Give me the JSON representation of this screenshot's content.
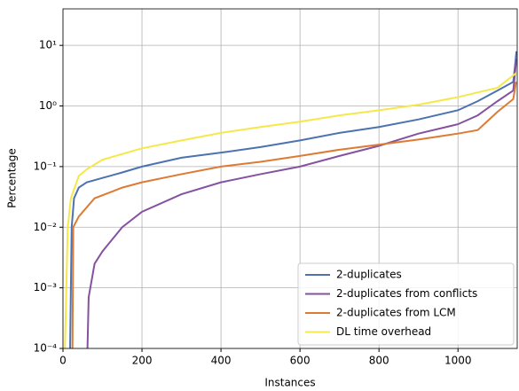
{
  "chart_data": {
    "type": "line",
    "xlabel": "Instances",
    "ylabel": "Percentage",
    "xlim": [
      0,
      1150
    ],
    "ylim": [
      0.0001,
      40
    ],
    "yscale": "log",
    "grid": true,
    "legend_loc": "lower right",
    "xticks": [
      0,
      200,
      400,
      600,
      800,
      1000
    ],
    "yticks": [
      {
        "value": 0.0001,
        "label": "10⁻⁴"
      },
      {
        "value": 0.001,
        "label": "10⁻³"
      },
      {
        "value": 0.01,
        "label": "10⁻²"
      },
      {
        "value": 0.1,
        "label": "10⁻¹"
      },
      {
        "value": 1,
        "label": "10⁰"
      },
      {
        "value": 10,
        "label": "10¹"
      }
    ],
    "series": [
      {
        "name": "2-duplicates",
        "color": "#4c72b0",
        "x": [
          18,
          22,
          28,
          40,
          60,
          100,
          150,
          200,
          300,
          400,
          500,
          600,
          700,
          800,
          900,
          1000,
          1050,
          1100,
          1140,
          1145,
          1148
        ],
        "values": [
          0.0001,
          0.01,
          0.03,
          0.045,
          0.055,
          0.065,
          0.08,
          0.1,
          0.14,
          0.17,
          0.21,
          0.27,
          0.36,
          0.45,
          0.6,
          0.85,
          1.2,
          1.8,
          2.5,
          5,
          8
        ]
      },
      {
        "name": "2-duplicates from conflicts",
        "color": "#8452a0",
        "x": [
          62,
          65,
          80,
          100,
          150,
          200,
          300,
          400,
          500,
          600,
          700,
          800,
          900,
          1000,
          1050,
          1100,
          1140,
          1148
        ],
        "values": [
          0.0001,
          0.0007,
          0.0025,
          0.004,
          0.01,
          0.018,
          0.035,
          0.055,
          0.075,
          0.1,
          0.15,
          0.22,
          0.35,
          0.5,
          0.7,
          1.2,
          1.8,
          6
        ]
      },
      {
        "name": "2-duplicates from LCM",
        "color": "#dd7a34",
        "x": [
          24,
          26,
          40,
          80,
          150,
          200,
          300,
          400,
          500,
          600,
          700,
          800,
          900,
          1000,
          1050,
          1100,
          1140,
          1147
        ],
        "values": [
          0.0001,
          0.01,
          0.015,
          0.03,
          0.045,
          0.055,
          0.075,
          0.1,
          0.12,
          0.15,
          0.19,
          0.23,
          0.28,
          0.35,
          0.4,
          0.8,
          1.3,
          2.5
        ]
      },
      {
        "name": "DL time overhead",
        "color": "#f5e84a",
        "x": [
          5,
          12,
          20,
          40,
          60,
          100,
          200,
          300,
          400,
          500,
          600,
          700,
          800,
          900,
          1000,
          1100,
          1148
        ],
        "values": [
          0.0001,
          0.01,
          0.03,
          0.07,
          0.09,
          0.13,
          0.2,
          0.27,
          0.36,
          0.45,
          0.55,
          0.7,
          0.85,
          1.05,
          1.4,
          2,
          3.5
        ]
      }
    ]
  }
}
